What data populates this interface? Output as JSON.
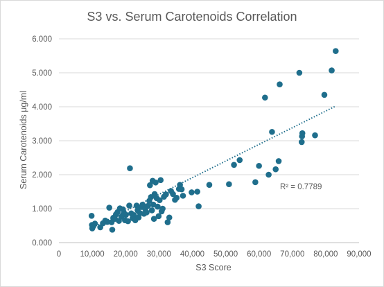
{
  "chart_data": {
    "type": "scatter",
    "title": "S3 vs. Serum Carotenoids Correlation",
    "xlabel": "S3 Score",
    "ylabel": "Serum Carotenoids μg/ml",
    "xlim": [
      0,
      90000
    ],
    "ylim": [
      0,
      6000
    ],
    "x_ticks": [
      0,
      10000,
      20000,
      30000,
      40000,
      50000,
      60000,
      70000,
      80000,
      90000
    ],
    "x_tick_labels": [
      "0",
      "10,000",
      "20,000",
      "30,000",
      "40,000",
      "50,000",
      "60,000",
      "70,000",
      "80,000",
      "90,000"
    ],
    "y_ticks": [
      0,
      1000,
      2000,
      3000,
      4000,
      5000,
      6000
    ],
    "y_tick_labels": [
      "0.000",
      "1.000",
      "2.000",
      "3.000",
      "4.000",
      "5.000",
      "6.000"
    ],
    "grid": "horizontal",
    "marker_color": "#1f6e8c",
    "trendline": {
      "type": "linear",
      "x": [
        9500,
        83000
      ],
      "y": [
        415,
        4020
      ],
      "style": "dotted",
      "color": "#1f6e8c"
    },
    "annotation": "R² = 0.7789",
    "points": [
      [
        9800,
        790
      ],
      [
        9900,
        520
      ],
      [
        10000,
        420
      ],
      [
        10300,
        480
      ],
      [
        10800,
        560
      ],
      [
        12400,
        450
      ],
      [
        13200,
        570
      ],
      [
        13900,
        650
      ],
      [
        14500,
        610
      ],
      [
        15100,
        1030
      ],
      [
        15800,
        600
      ],
      [
        16000,
        380
      ],
      [
        16300,
        730
      ],
      [
        16800,
        700
      ],
      [
        17100,
        830
      ],
      [
        17600,
        900
      ],
      [
        18000,
        640
      ],
      [
        18300,
        1010
      ],
      [
        18700,
        760
      ],
      [
        19200,
        980
      ],
      [
        19500,
        870
      ],
      [
        19800,
        660
      ],
      [
        20100,
        820
      ],
      [
        20700,
        630
      ],
      [
        21100,
        1090
      ],
      [
        21300,
        2190
      ],
      [
        21700,
        860
      ],
      [
        22100,
        720
      ],
      [
        22500,
        810
      ],
      [
        22900,
        660
      ],
      [
        23300,
        1090
      ],
      [
        23600,
        950
      ],
      [
        23900,
        740
      ],
      [
        24300,
        870
      ],
      [
        24700,
        1050
      ],
      [
        25100,
        1120
      ],
      [
        25500,
        850
      ],
      [
        25900,
        990
      ],
      [
        26300,
        890
      ],
      [
        26700,
        1080
      ],
      [
        27100,
        1230
      ],
      [
        27300,
        1690
      ],
      [
        27600,
        1340
      ],
      [
        27900,
        950
      ],
      [
        28100,
        1820
      ],
      [
        28300,
        1120
      ],
      [
        28500,
        700
      ],
      [
        28700,
        1430
      ],
      [
        29000,
        1770
      ],
      [
        29300,
        1310
      ],
      [
        29600,
        1060
      ],
      [
        29900,
        780
      ],
      [
        30200,
        1250
      ],
      [
        30500,
        1840
      ],
      [
        30800,
        920
      ],
      [
        31100,
        1000
      ],
      [
        31500,
        1350
      ],
      [
        32100,
        1420
      ],
      [
        32600,
        600
      ],
      [
        33100,
        740
      ],
      [
        33600,
        1520
      ],
      [
        34200,
        1430
      ],
      [
        34800,
        1260
      ],
      [
        35300,
        1320
      ],
      [
        36000,
        1580
      ],
      [
        36300,
        1700
      ],
      [
        36800,
        1570
      ],
      [
        37200,
        1380
      ],
      [
        39800,
        1480
      ],
      [
        41500,
        1500
      ],
      [
        41900,
        1070
      ],
      [
        45100,
        1700
      ],
      [
        51000,
        1720
      ],
      [
        52500,
        2290
      ],
      [
        54200,
        2430
      ],
      [
        58900,
        1780
      ],
      [
        60000,
        2260
      ],
      [
        61800,
        4270
      ],
      [
        62900,
        2000
      ],
      [
        63900,
        3260
      ],
      [
        65000,
        2160
      ],
      [
        65900,
        2400
      ],
      [
        66200,
        4660
      ],
      [
        72100,
        5000
      ],
      [
        72800,
        2960
      ],
      [
        72900,
        3130
      ],
      [
        73000,
        3220
      ],
      [
        76800,
        3160
      ],
      [
        79600,
        4350
      ],
      [
        81800,
        5070
      ],
      [
        83000,
        5640
      ]
    ]
  }
}
